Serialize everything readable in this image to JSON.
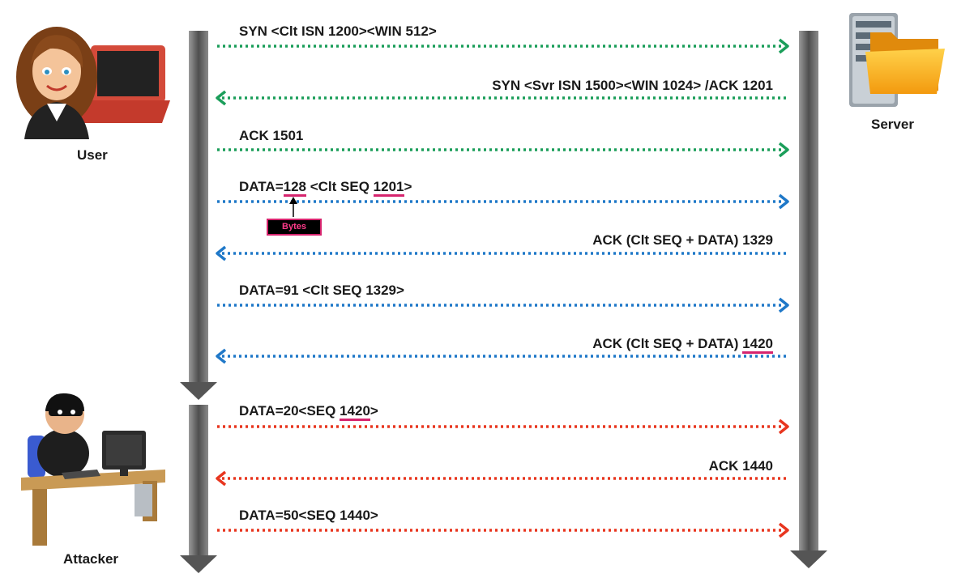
{
  "actors": {
    "user": "User",
    "server": "Server",
    "attacker": "Attacker"
  },
  "annotation": {
    "bytes": "Bytes"
  },
  "messages": [
    {
      "dir": "right",
      "color": "green",
      "parts": [
        {
          "t": "SYN <Clt ISN 1200><WIN 512>"
        }
      ]
    },
    {
      "dir": "left",
      "color": "green",
      "parts": [
        {
          "t": "SYN <Svr ISN 1500><WIN 1024> /ACK 1201"
        }
      ]
    },
    {
      "dir": "right",
      "color": "green",
      "parts": [
        {
          "t": "ACK 1501"
        }
      ]
    },
    {
      "dir": "right",
      "color": "blue",
      "parts": [
        {
          "t": "DATA="
        },
        {
          "t": "128",
          "u": true
        },
        {
          "t": " <Clt SEQ "
        },
        {
          "t": "1201",
          "u": true
        },
        {
          "t": ">"
        }
      ]
    },
    {
      "dir": "left",
      "color": "blue",
      "parts": [
        {
          "t": "ACK (Clt SEQ + DATA) 1329"
        }
      ]
    },
    {
      "dir": "right",
      "color": "blue",
      "parts": [
        {
          "t": "DATA=91 <Clt SEQ 1329>"
        }
      ]
    },
    {
      "dir": "left",
      "color": "blue",
      "parts": [
        {
          "t": "ACK (Clt SEQ + DATA) "
        },
        {
          "t": "1420",
          "u": true
        }
      ]
    },
    {
      "dir": "right",
      "color": "red",
      "parts": [
        {
          "t": "DATA=20<SEQ "
        },
        {
          "t": "1420",
          "u": true
        },
        {
          "t": ">"
        }
      ]
    },
    {
      "dir": "left",
      "color": "red",
      "parts": [
        {
          "t": "ACK 1440"
        }
      ]
    },
    {
      "dir": "right",
      "color": "red",
      "parts": [
        {
          "t": "DATA=50<SEQ 1440>"
        }
      ]
    }
  ],
  "colors": {
    "green": "#1b9e5a",
    "blue": "#1f78c8",
    "red": "#e8361f",
    "underline": "#d6246e",
    "lifeline": "#5f5f5f"
  }
}
